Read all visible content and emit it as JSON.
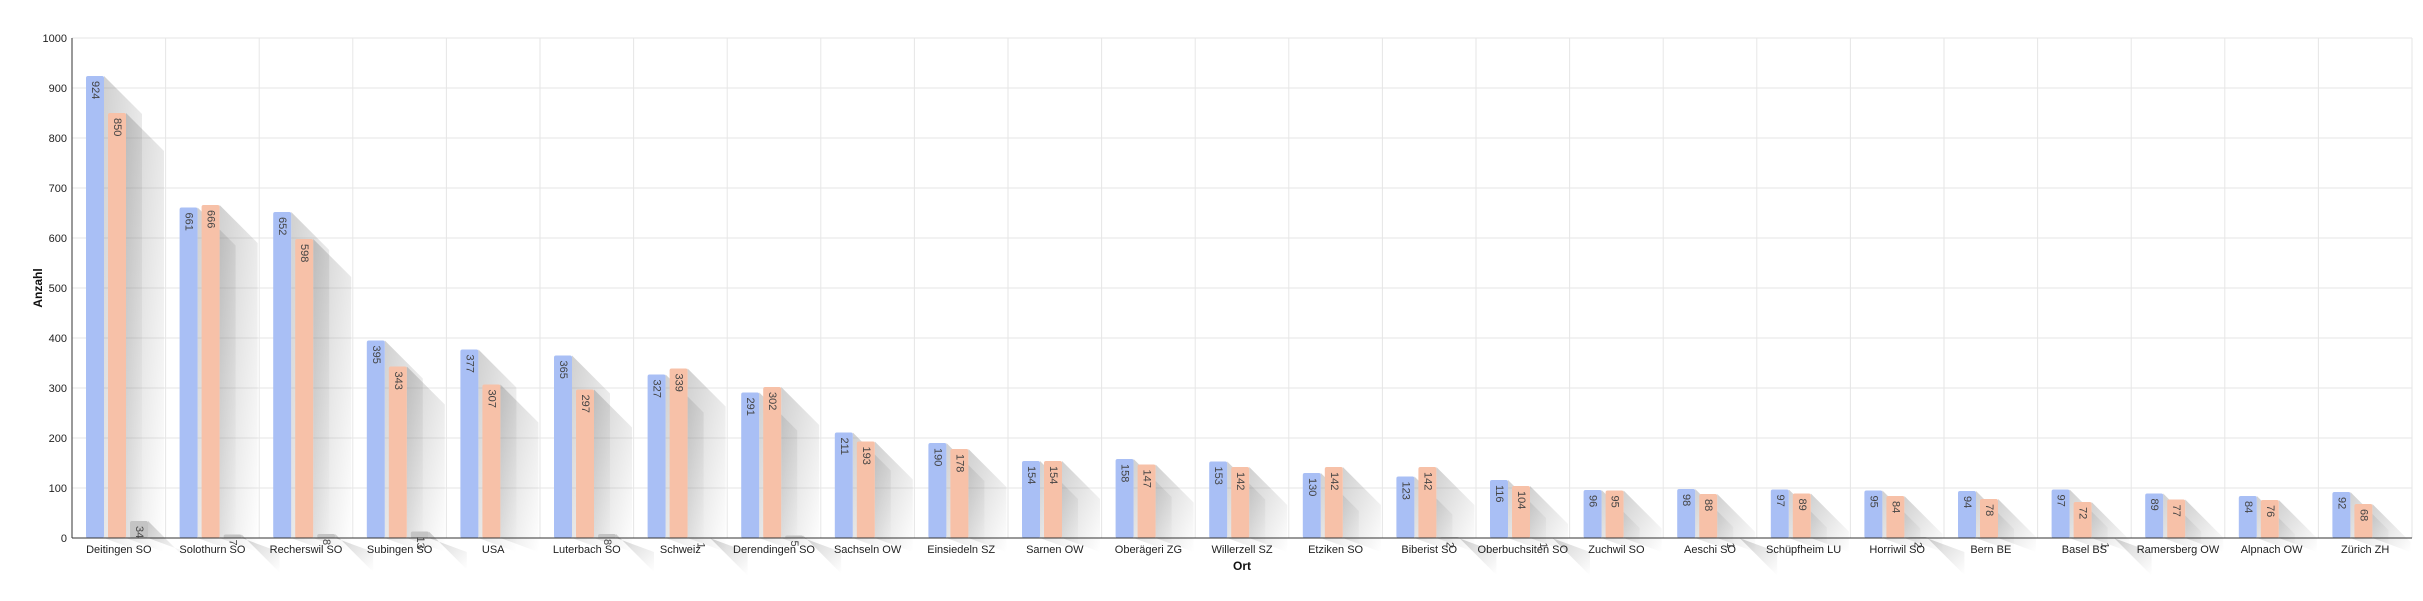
{
  "chart_data": {
    "type": "bar",
    "xlabel": "Ort",
    "ylabel": "Anzahl",
    "ylim": [
      0,
      1000
    ],
    "yticks": [
      0,
      100,
      200,
      300,
      400,
      500,
      600,
      700,
      800,
      900,
      1000
    ],
    "grid": true,
    "legend": "none",
    "categories": [
      "Deitingen SO",
      "Solothurn SO",
      "Recherswil SO",
      "Subingen SO",
      "USA",
      "Luterbach SO",
      "Schweiz",
      "Derendingen SO",
      "Sachseln OW",
      "Einsiedeln SZ",
      "Sarnen OW",
      "Oberägeri ZG",
      "Willerzell SZ",
      "Etziken SO",
      "Biberist SO",
      "Oberbuchsiten SO",
      "Zuchwil SO",
      "Aeschi SO",
      "Schüpfheim LU",
      "Horriwil SO",
      "Bern BE",
      "Basel BS",
      "Ramersberg OW",
      "Alpnach OW",
      "Zürich ZH"
    ],
    "series": [
      {
        "color": "#a9bff5",
        "values": [
          924,
          661,
          652,
          395,
          377,
          365,
          327,
          291,
          211,
          190,
          154,
          158,
          153,
          130,
          123,
          116,
          96,
          98,
          97,
          95,
          94,
          97,
          89,
          84,
          92
        ]
      },
      {
        "color": "#f7c1a8",
        "values": [
          850,
          666,
          598,
          343,
          307,
          297,
          339,
          302,
          193,
          178,
          154,
          147,
          142,
          142,
          142,
          104,
          95,
          88,
          89,
          84,
          78,
          72,
          77,
          76,
          68
        ]
      },
      {
        "color": "#c4c4c4",
        "values": [
          34,
          7,
          8,
          13,
          null,
          8,
          1,
          5,
          null,
          null,
          null,
          null,
          null,
          null,
          2,
          1,
          null,
          1,
          null,
          2,
          null,
          1,
          null,
          null,
          null
        ]
      }
    ]
  }
}
